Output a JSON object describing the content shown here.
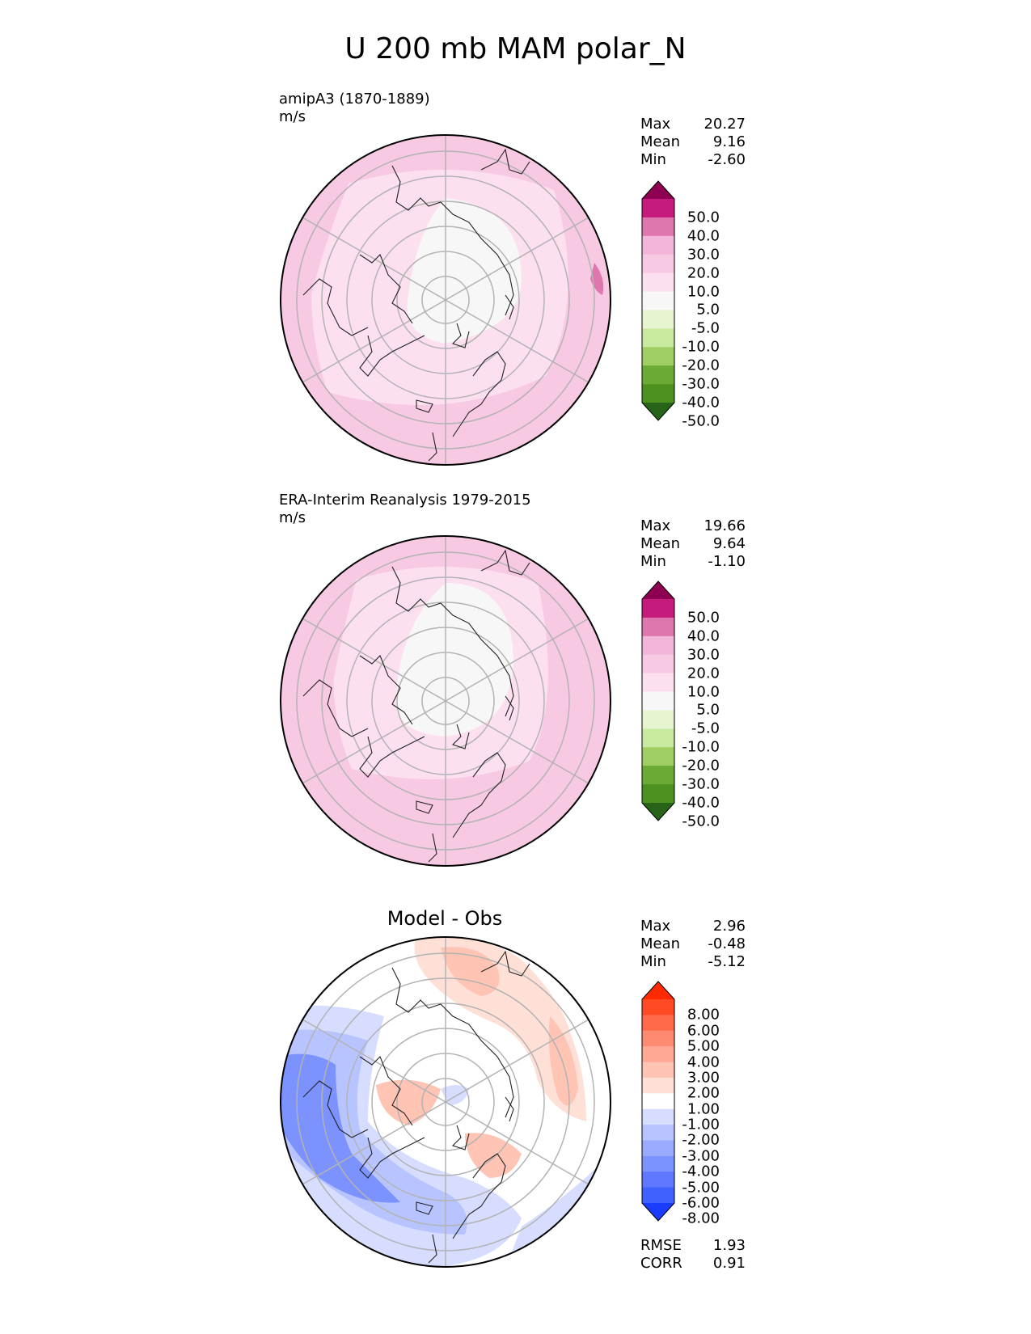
{
  "figure": {
    "title": "U 200 mb MAM polar_N"
  },
  "panels": [
    {
      "label": "amipA3 (1870-1889)",
      "units": "m/s",
      "title": "",
      "stats": [
        {
          "name": "Max",
          "value": "20.27"
        },
        {
          "name": "Mean",
          "value": "9.16"
        },
        {
          "name": "Min",
          "value": "-2.60"
        }
      ],
      "colorbar": {
        "levels": [
          "50.0",
          "40.0",
          "30.0",
          "20.0",
          "10.0",
          "5.0",
          "-5.0",
          "-10.0",
          "-20.0",
          "-30.0",
          "-40.0",
          "-50.0"
        ],
        "colors": [
          "#8e0152",
          "#c51b7d",
          "#de77ae",
          "#f1b6da",
          "#f7c9e3",
          "#fde0ef",
          "#f7f7f7",
          "#e6f5d0",
          "#c7e9a0",
          "#9fcf63",
          "#6aaa35",
          "#4d9221",
          "#276419"
        ]
      }
    },
    {
      "label": "ERA-Interim Reanalysis 1979-2015",
      "units": "m/s",
      "title": "",
      "stats": [
        {
          "name": "Max",
          "value": "19.66"
        },
        {
          "name": "Mean",
          "value": "9.64"
        },
        {
          "name": "Min",
          "value": "-1.10"
        }
      ],
      "colorbar": {
        "levels": [
          "50.0",
          "40.0",
          "30.0",
          "20.0",
          "10.0",
          "5.0",
          "-5.0",
          "-10.0",
          "-20.0",
          "-30.0",
          "-40.0",
          "-50.0"
        ],
        "colors": [
          "#8e0152",
          "#c51b7d",
          "#de77ae",
          "#f1b6da",
          "#f7c9e3",
          "#fde0ef",
          "#f7f7f7",
          "#e6f5d0",
          "#c7e9a0",
          "#9fcf63",
          "#6aaa35",
          "#4d9221",
          "#276419"
        ]
      }
    },
    {
      "label": "",
      "units": "",
      "title": "Model - Obs",
      "stats": [
        {
          "name": "Max",
          "value": "2.96"
        },
        {
          "name": "Mean",
          "value": "-0.48"
        },
        {
          "name": "Min",
          "value": "-5.12"
        }
      ],
      "extra_stats": [
        {
          "name": "RMSE",
          "value": "1.93"
        },
        {
          "name": "CORR",
          "value": "0.91"
        }
      ],
      "colorbar": {
        "levels": [
          "8.00",
          "6.00",
          "5.00",
          "4.00",
          "3.00",
          "2.00",
          "1.00",
          "-1.00",
          "-2.00",
          "-3.00",
          "-4.00",
          "-5.00",
          "-6.00",
          "-8.00"
        ],
        "colors": [
          "#ff2a00",
          "#ff4a24",
          "#ff6a4a",
          "#ff8a72",
          "#ffa893",
          "#ffc4b4",
          "#ffe0d6",
          "#ffffff",
          "#d6ddff",
          "#b8c4ff",
          "#9aabff",
          "#7c92ff",
          "#5e79ff",
          "#4060ff",
          "#1a3cff"
        ]
      }
    }
  ]
}
